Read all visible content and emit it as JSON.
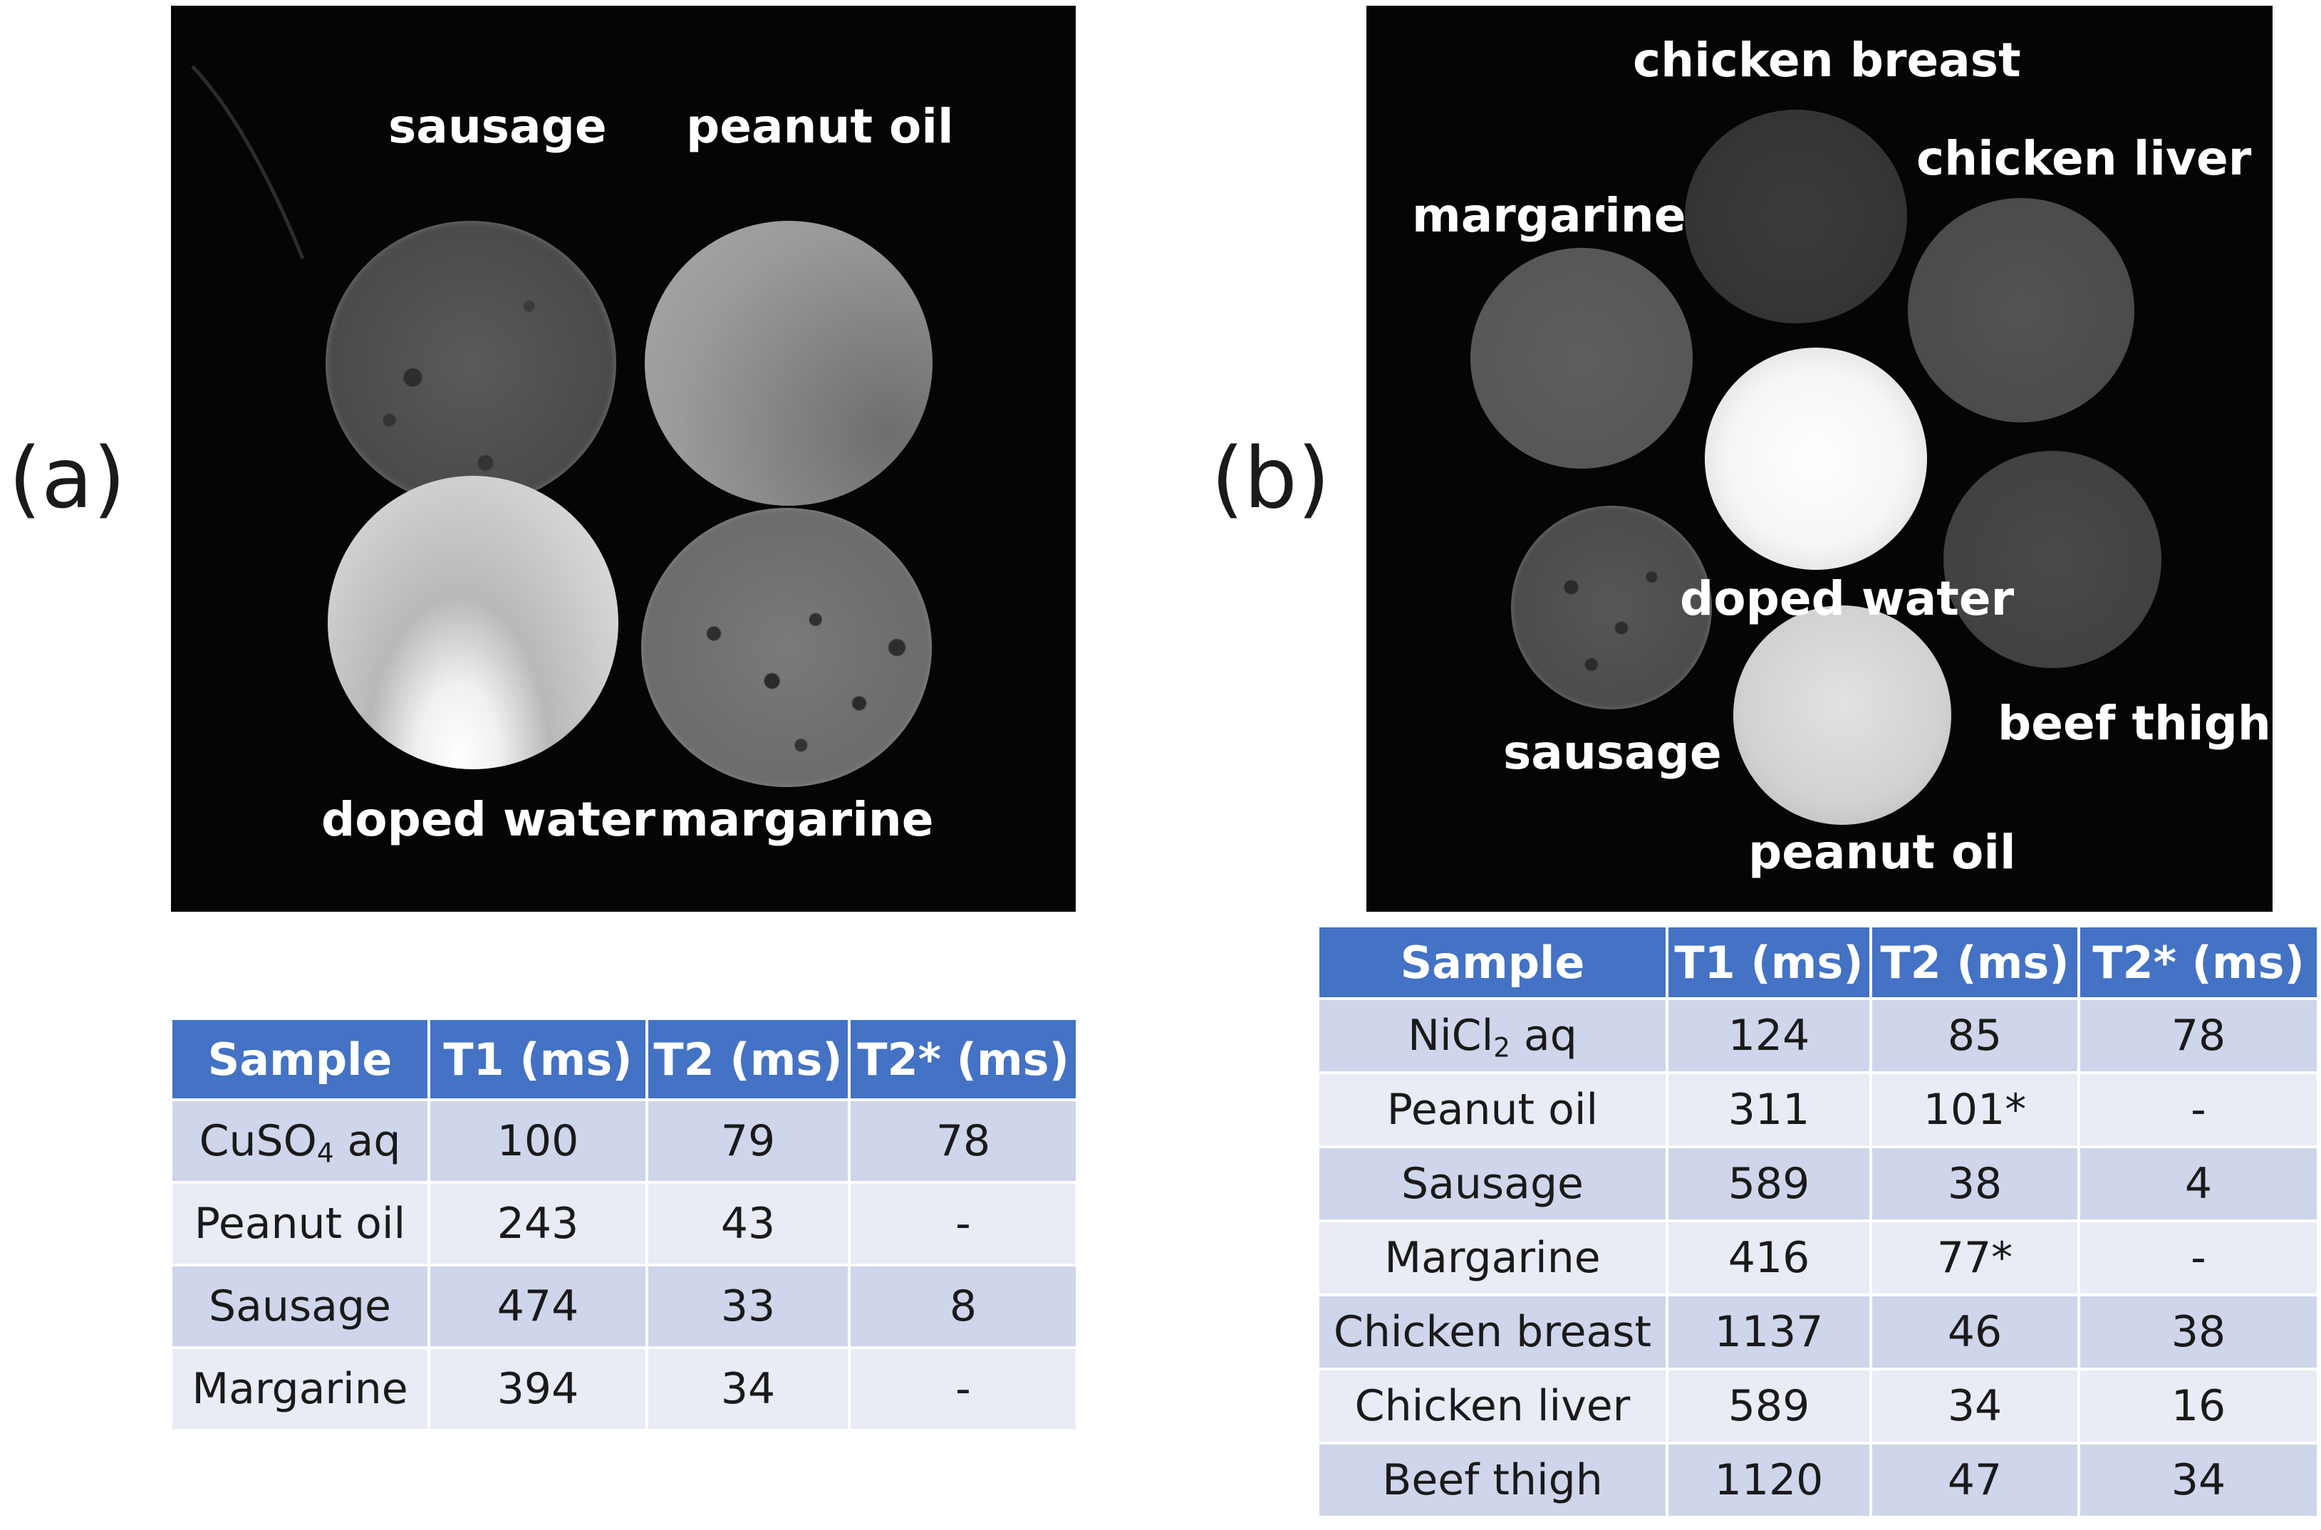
{
  "panel_a": {
    "letter": "(a)",
    "labels": {
      "sausage": "sausage",
      "peanut_oil": "peanut oil",
      "doped_water": "doped water",
      "margarine": "margarine"
    },
    "table": {
      "headers": [
        "Sample",
        "T1 (ms)",
        "T2 (ms)",
        "T2* (ms)"
      ],
      "rows": [
        {
          "sample": "CuSO",
          "sample_sub": "4",
          "sample_suffix": " aq",
          "t1": "100",
          "t2": "79",
          "t2s": "78"
        },
        {
          "sample": "Peanut oil",
          "t1": "243",
          "t2": "43",
          "t2s": "-"
        },
        {
          "sample": "Sausage",
          "t1": "474",
          "t2": "33",
          "t2s": "8"
        },
        {
          "sample": "Margarine",
          "t1": "394",
          "t2": "34",
          "t2s": "-"
        }
      ]
    }
  },
  "panel_b": {
    "letter": "(b)",
    "labels": {
      "chicken_breast": "chicken breast",
      "chicken_liver": "chicken liver",
      "margarine": "margarine",
      "doped_water": "doped water",
      "beef_thigh": "beef thigh",
      "sausage": "sausage",
      "peanut_oil": "peanut oil"
    },
    "table": {
      "headers": [
        "Sample",
        "T1 (ms)",
        "T2 (ms)",
        "T2* (ms)"
      ],
      "rows": [
        {
          "sample": "NiCl",
          "sample_sub": "2",
          "sample_suffix": " aq",
          "t1": "124",
          "t2": "85",
          "t2s": "78"
        },
        {
          "sample": "Peanut oil",
          "t1": "311",
          "t2": "101*",
          "t2s": "-"
        },
        {
          "sample": "Sausage",
          "t1": "589",
          "t2": "38",
          "t2s": "4"
        },
        {
          "sample": "Margarine",
          "t1": "416",
          "t2": "77*",
          "t2s": "-"
        },
        {
          "sample": "Chicken breast",
          "t1": "1137",
          "t2": "46",
          "t2s": "38"
        },
        {
          "sample": "Chicken liver",
          "t1": "589",
          "t2": "34",
          "t2s": "16"
        },
        {
          "sample": "Beef thigh",
          "t1": "1120",
          "t2": "47",
          "t2s": "34"
        }
      ]
    }
  },
  "colors": {
    "header_blue": "#4472c4",
    "row_dark": "#cfd5ea",
    "row_light": "#e9ebf5",
    "image_background": "#050505"
  }
}
